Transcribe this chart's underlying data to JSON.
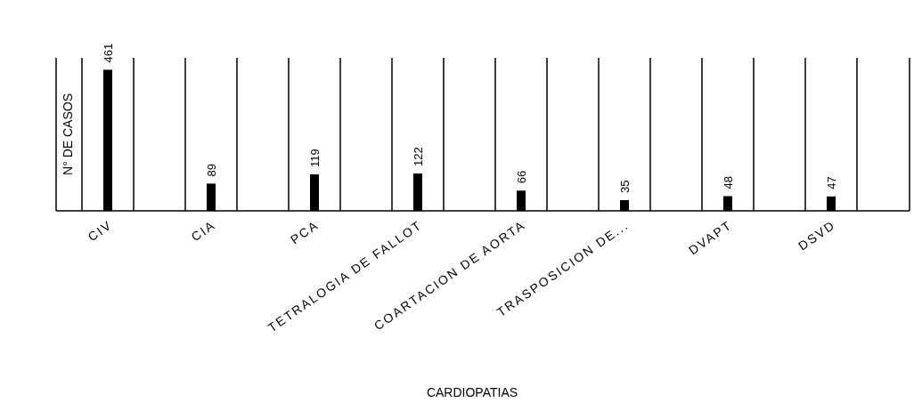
{
  "chart_data": {
    "type": "bar",
    "xlabel": "CARDIOPATIAS",
    "ylabel": "N° DE CASOS",
    "categories": [
      "CIV",
      "CIA",
      "PCA",
      "TETRALOGIA DE FALLOT",
      "COARTACION DE AORTA",
      "TRASPOSICION DE...",
      "DVAPT",
      "DSVD"
    ],
    "values": [
      461,
      89,
      119,
      122,
      66,
      35,
      48,
      47
    ],
    "color": "#000000",
    "ylim": [
      0,
      500
    ],
    "tick_labels": "x",
    "grid": "x",
    "data_labels": true
  }
}
